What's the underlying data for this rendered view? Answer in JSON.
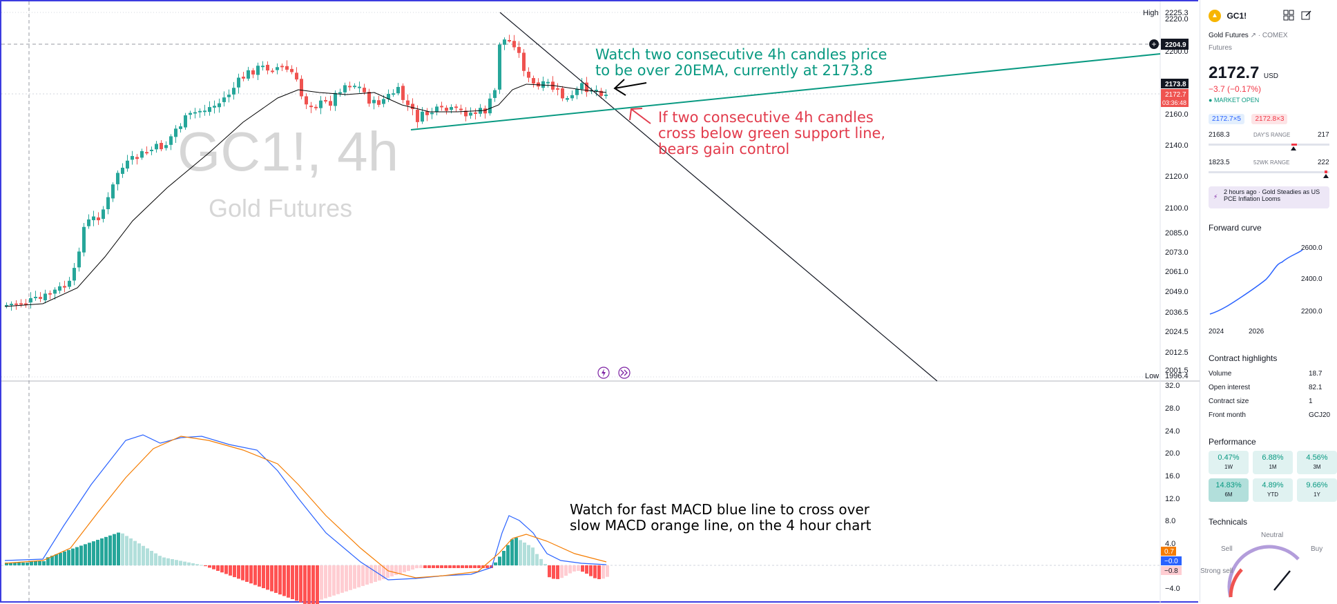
{
  "symbol": {
    "watermark_title": "GC1!, 4h",
    "watermark_name": "Gold Futures"
  },
  "price_axis": {
    "high_label": "High",
    "high_value": "2225.3",
    "low_label": "Low",
    "low_value": "1996.4",
    "crosshair_value": "2204.9",
    "ema_tag": "2173.8",
    "last_price_tag": "2172.7",
    "countdown_tag": "03:36:48",
    "ticks": [
      "2220.0",
      "2200.0",
      "2160.0",
      "2140.0",
      "2120.0",
      "2100.0",
      "2085.0",
      "2073.0",
      "2061.0",
      "2049.0",
      "2036.5",
      "2024.5",
      "2012.5",
      "2001.5"
    ]
  },
  "macd_axis": {
    "ticks": [
      "32.0",
      "28.0",
      "24.0",
      "20.0",
      "16.0",
      "12.0",
      "8.0",
      "4.0",
      "−4.0"
    ],
    "tag_orange": "0.7",
    "tag_blue": "−0.0",
    "tag_red": "−0.8"
  },
  "annotations": {
    "ema_note_line1": "Watch two consecutive 4h candles price",
    "ema_note_line2": "to be over 20EMA, currently at 2173.8",
    "support_note_line1": "If two consecutive 4h candles",
    "support_note_line2": "cross below green support line,",
    "support_note_line3": "bears gain control",
    "macd_note_line1": "Watch for fast MACD blue line to cross over",
    "macd_note_line2": "slow MACD orange line, on the 4 hour chart"
  },
  "colors": {
    "up": "#26a69a",
    "down": "#ef5350",
    "ema": "#000000",
    "support": "#089981",
    "macd_fast": "#2962ff",
    "macd_slow": "#f57c00",
    "hist_up_strong": "#26a69a",
    "hist_up_weak": "#b2dfdb",
    "hist_down_strong": "#ff5252",
    "hist_down_weak": "#ffcdd2"
  },
  "panel": {
    "ticker": "GC1!",
    "name": "Gold Futures",
    "exchange": "· COMEX",
    "type": "Futures",
    "price": "2172.7",
    "currency": "USD",
    "change": "−3.7 (−0.17%)",
    "market_status": "MARKET OPEN",
    "bid": "2172.7×5",
    "ask": "2172.8×3",
    "day_range_low": "2168.3",
    "day_range_label": "DAY'S RANGE",
    "day_range_high": "217",
    "week52_low": "1823.5",
    "week52_label": "52WK RANGE",
    "week52_high": "222",
    "news_time": "2 hours ago",
    "news_title": "Gold Steadies as US PCE Inflation Looms",
    "forward_curve_title": "Forward curve",
    "forward_curve_y": [
      "2600.0",
      "2400.0",
      "2200.0"
    ],
    "forward_curve_x": [
      "2024",
      "2026"
    ],
    "contract_title": "Contract highlights",
    "contract": [
      {
        "label": "Volume",
        "value": "18.7"
      },
      {
        "label": "Open interest",
        "value": "82.1"
      },
      {
        "label": "Contract size",
        "value": "1"
      },
      {
        "label": "Front month",
        "value": "GCJ20"
      }
    ],
    "performance_title": "Performance",
    "performance": [
      {
        "value": "0.47%",
        "label": "1W"
      },
      {
        "value": "6.88%",
        "label": "1M"
      },
      {
        "value": "4.56%",
        "label": "3M"
      },
      {
        "value": "14.83%",
        "label": "6M"
      },
      {
        "value": "4.89%",
        "label": "YTD"
      },
      {
        "value": "9.66%",
        "label": "1Y"
      }
    ],
    "technicals_title": "Technicals",
    "gauge_neutral": "Neutral",
    "gauge_sell": "Sell",
    "gauge_buy": "Buy",
    "gauge_strong_sell": "Strong sell"
  }
}
